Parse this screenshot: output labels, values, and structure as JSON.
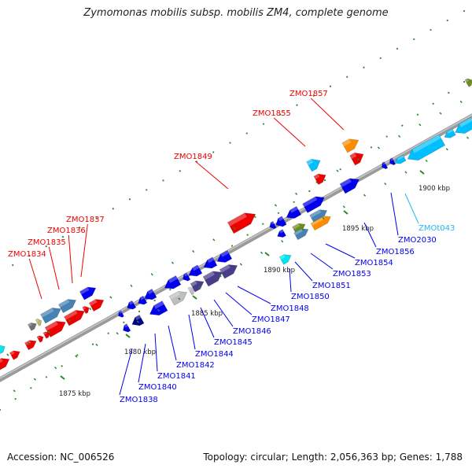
{
  "title": "Zymomonas mobilis subsp. mobilis ZM4, complete genome",
  "footer": {
    "accession": "Accession: NC_006526",
    "summary": "Topology: circular; Length: 2,056,363 bp; Genes: 1,788"
  },
  "colors": {
    "red": "#ee0000",
    "blue": "#0000ee",
    "steel": "#4682b4",
    "navy": "#00008b",
    "slate": "#483d8b",
    "sky": "#00bfff",
    "orange": "#ff8c00",
    "olive": "#6b8e23",
    "cyan": "#00e5ee",
    "grey": "#bebebe",
    "darkgrey": "#707070",
    "khaki": "#bdb76b",
    "trna": "#1fb8ee",
    "tick": "#228b22"
  },
  "ticks": [
    {
      "label": "1875 kbp"
    },
    {
      "label": "1880 kbp"
    },
    {
      "label": "1885 kbp"
    },
    {
      "label": "1890 kbp"
    },
    {
      "label": "1895 kbp"
    },
    {
      "label": "1900 kbp"
    }
  ],
  "upper_labels": [
    {
      "text": "ZMO1834",
      "color": "red"
    },
    {
      "text": "ZMO1835",
      "color": "red"
    },
    {
      "text": "ZMO1836",
      "color": "red"
    },
    {
      "text": "ZMO1837",
      "color": "red"
    },
    {
      "text": "ZMO1849",
      "color": "red"
    },
    {
      "text": "ZMO1855",
      "color": "red"
    },
    {
      "text": "ZMO1857",
      "color": "red"
    }
  ],
  "lower_labels": [
    {
      "text": "ZMO1838",
      "color": "blue"
    },
    {
      "text": "ZMO1840",
      "color": "blue"
    },
    {
      "text": "ZMO1841",
      "color": "blue"
    },
    {
      "text": "ZMO1842",
      "color": "blue"
    },
    {
      "text": "ZMO1844",
      "color": "blue"
    },
    {
      "text": "ZMO1845",
      "color": "blue"
    },
    {
      "text": "ZMO1846",
      "color": "blue"
    },
    {
      "text": "ZMO1847",
      "color": "blue"
    },
    {
      "text": "ZMO1848",
      "color": "blue"
    },
    {
      "text": "ZMO1850",
      "color": "blue"
    },
    {
      "text": "ZMO1851",
      "color": "blue"
    },
    {
      "text": "ZMO1853",
      "color": "blue"
    },
    {
      "text": "ZMO1854",
      "color": "blue"
    },
    {
      "text": "ZMO1856",
      "color": "blue"
    },
    {
      "text": "ZMO2030",
      "color": "blue"
    },
    {
      "text": "ZMOt043",
      "color": "trna"
    }
  ]
}
